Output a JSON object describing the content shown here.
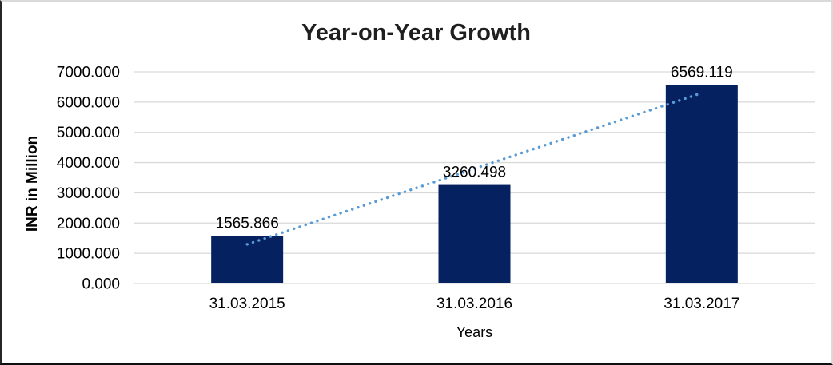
{
  "chart_data": {
    "type": "bar",
    "title": "Year-on-Year Growth",
    "xlabel": "Years",
    "ylabel": "INR in Million",
    "categories": [
      "31.03.2015",
      "31.03.2016",
      "31.03.2017"
    ],
    "values": [
      1565.866,
      3260.498,
      6569.119
    ],
    "data_labels": [
      "1565.866",
      "3260.498",
      "6569.119"
    ],
    "ylim": [
      0,
      7000
    ],
    "ytick_step": 1000,
    "ytick_labels": [
      "0.000",
      "1000.000",
      "2000.000",
      "3000.000",
      "4000.000",
      "5000.000",
      "6000.000",
      "7000.000"
    ],
    "grid": true,
    "legend": "none",
    "trendline": {
      "type": "linear",
      "style": "dotted",
      "color": "#5b9bd5"
    },
    "colors": {
      "bar": "#052160",
      "gridline": "#d9d9d9",
      "text": "#000000",
      "title": "#1f1f1f"
    }
  }
}
